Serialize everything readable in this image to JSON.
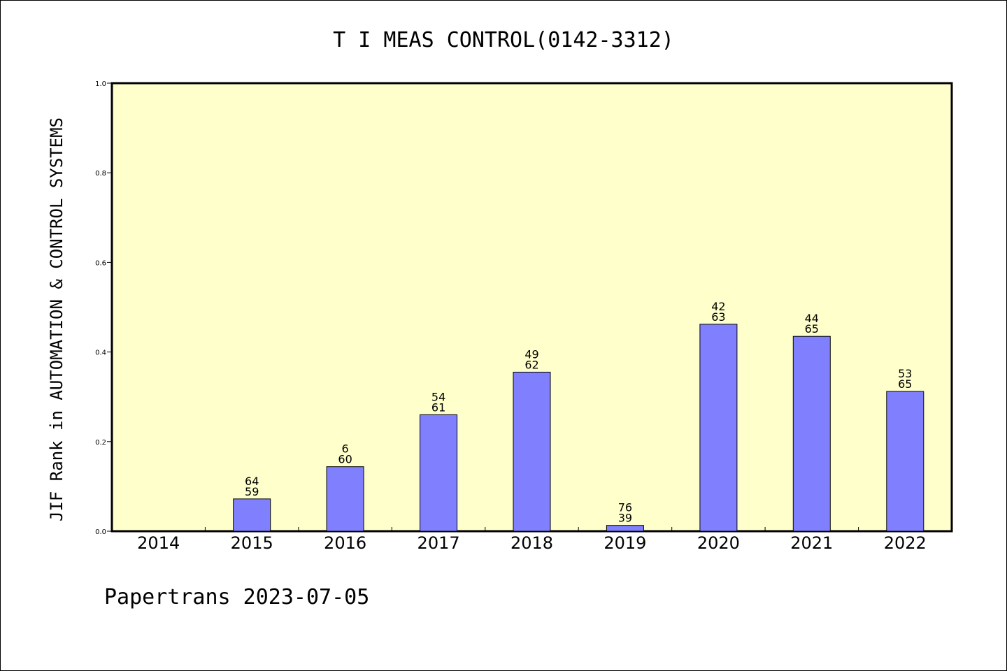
{
  "chart_data": {
    "type": "bar",
    "title": "T I MEAS CONTROL(0142-3312)",
    "ylabel": "JIF Rank in AUTOMATION & CONTROL SYSTEMS",
    "xlabel": "",
    "ylim": [
      0,
      1.0
    ],
    "yticks": [
      "0.0",
      "0.2",
      "0.4",
      "0.6",
      "0.8",
      "1.0"
    ],
    "grid": false,
    "categories": [
      "2014",
      "2015",
      "2016",
      "2017",
      "2018",
      "2019",
      "2020",
      "2021",
      "2022"
    ],
    "values": [
      0,
      0.072,
      0.144,
      0.26,
      0.355,
      0.013,
      0.462,
      0.435,
      0.312
    ],
    "labels_top": [
      "",
      "64",
      "6",
      "54",
      "49",
      "76",
      "42",
      "44",
      "53"
    ],
    "labels_bottom": [
      "",
      "59",
      "60",
      "61",
      "62",
      "39",
      "63",
      "65",
      "65"
    ],
    "colors": {
      "bar": "#8080ff",
      "plot_background": "#ffffcc",
      "axis": "#000000"
    }
  },
  "footer": "Papertrans 2023-07-05"
}
